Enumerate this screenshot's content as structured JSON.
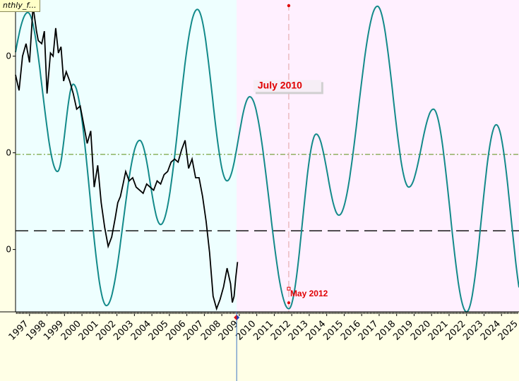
{
  "window": {
    "title_tab": "nthly_f..."
  },
  "colors": {
    "past_bg": "#eeffff",
    "future_bg": "#fff0ff",
    "frame_bg": "#ffffe6",
    "cycle": "#138a8a",
    "price": "#000000",
    "annotation": "#e00000",
    "cursor": "#3b73c4",
    "mid_line": "#6c9a2e",
    "dash_line": "#000000"
  },
  "chart_data": {
    "type": "line",
    "title": "",
    "xlabel": "",
    "ylabel": "",
    "xlim": [
      1996.7,
      2025.5
    ],
    "ylim": [
      0,
      1
    ],
    "x_tick_labels": [
      "1997",
      "1998",
      "1999",
      "2000",
      "2001",
      "2002",
      "2003",
      "2004",
      "2005",
      "2006",
      "2007",
      "2008",
      "2009",
      "2010",
      "2011",
      "2012",
      "2013",
      "2014",
      "2015",
      "2016",
      "2017",
      "2018",
      "2019",
      "2020",
      "2021",
      "2022",
      "2023",
      "2024",
      "2025"
    ],
    "y_tick_labels": [
      "0",
      "0",
      "0"
    ],
    "y_tick_values": [
      0.82,
      0.51,
      0.2
    ],
    "reference_lines": [
      {
        "style": "dash-dot",
        "y": 0.505
      },
      {
        "style": "long-dash",
        "y": 0.26
      }
    ],
    "projection_start_x": 2009.35,
    "cursor_x": 2012.33,
    "series": [
      {
        "type": "price",
        "x": [
          1996.7,
          1996.9,
          1997.1,
          1997.3,
          1997.5,
          1997.7,
          1997.9,
          1998.0,
          1998.2,
          1998.35,
          1998.5,
          1998.7,
          1998.85,
          1999.0,
          1999.15,
          1999.3,
          1999.45,
          1999.6,
          1999.8,
          2000.0,
          2000.2,
          2000.4,
          2000.6,
          2000.8,
          2001.0,
          2001.2,
          2001.4,
          2001.6,
          2001.8,
          2002.0,
          2002.2,
          2002.4,
          2002.55,
          2002.7,
          2002.85,
          2003.0,
          2003.2,
          2003.4,
          2003.6,
          2003.8,
          2004.0,
          2004.2,
          2004.4,
          2004.6,
          2004.8,
          2005.0,
          2005.2,
          2005.4,
          2005.6,
          2005.8,
          2006.0,
          2006.2,
          2006.4,
          2006.6,
          2006.8,
          2007.0,
          2007.2,
          2007.4,
          2007.6,
          2007.8,
          2008.0,
          2008.2,
          2008.4,
          2008.6,
          2008.8,
          2009.0,
          2009.1,
          2009.2,
          2009.3,
          2009.4
        ],
        "y": [
          0.76,
          0.71,
          0.82,
          0.86,
          0.8,
          0.98,
          0.9,
          0.87,
          0.86,
          0.9,
          0.7,
          0.83,
          0.82,
          0.91,
          0.83,
          0.85,
          0.74,
          0.77,
          0.74,
          0.7,
          0.65,
          0.66,
          0.6,
          0.54,
          0.58,
          0.4,
          0.47,
          0.35,
          0.27,
          0.21,
          0.24,
          0.3,
          0.35,
          0.37,
          0.41,
          0.45,
          0.42,
          0.43,
          0.4,
          0.39,
          0.38,
          0.41,
          0.4,
          0.39,
          0.42,
          0.41,
          0.44,
          0.45,
          0.48,
          0.49,
          0.48,
          0.52,
          0.55,
          0.46,
          0.49,
          0.43,
          0.43,
          0.37,
          0.29,
          0.19,
          0.05,
          0.01,
          0.04,
          0.08,
          0.14,
          0.09,
          0.03,
          0.05,
          0.11,
          0.16
        ]
      },
      {
        "type": "cycle",
        "x_start": 1996.7,
        "x_end": 2025.5,
        "maxima_x": [
          1997.4,
          2000.0,
          2003.8,
          2007.1,
          2010.1,
          2013.9,
          2017.4,
          2020.6,
          2024.2
        ],
        "minima_x": [
          1999.1,
          2001.9,
          2005.0,
          2008.8,
          2012.33,
          2015.2,
          2019.2,
          2022.5
        ],
        "maxima_y": [
          0.96,
          0.73,
          0.55,
          0.97,
          0.69,
          0.57,
          0.98,
          0.65,
          0.6
        ],
        "minima_y": [
          0.45,
          0.02,
          0.28,
          0.42,
          0.01,
          0.31,
          0.4,
          0.0
        ]
      }
    ],
    "annotations": [
      {
        "text": "July 2010",
        "x": 2010.55,
        "y": 0.73
      },
      {
        "text": "May 2012",
        "x": 2012.33,
        "y": 0.02
      }
    ]
  }
}
